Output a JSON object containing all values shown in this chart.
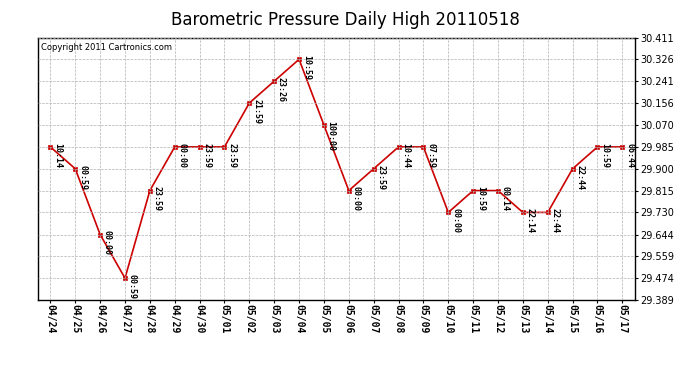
{
  "title": "Barometric Pressure Daily High 20110518",
  "copyright": "Copyright 2011 Cartronics.com",
  "x_labels": [
    "04/24",
    "04/25",
    "04/26",
    "04/27",
    "04/28",
    "04/29",
    "04/30",
    "05/01",
    "05/02",
    "05/03",
    "05/04",
    "05/05",
    "05/06",
    "05/07",
    "05/08",
    "05/09",
    "05/10",
    "05/11",
    "05/12",
    "05/13",
    "05/14",
    "05/15",
    "05/16",
    "05/17"
  ],
  "y_values": [
    29.985,
    29.9,
    29.644,
    29.474,
    29.815,
    29.985,
    29.985,
    29.985,
    30.156,
    30.241,
    30.326,
    30.07,
    29.815,
    29.9,
    29.985,
    29.985,
    29.73,
    29.815,
    29.815,
    29.73,
    29.73,
    29.9,
    29.985,
    29.985
  ],
  "point_labels": [
    "10:14",
    "00:59",
    "00:00",
    "00:59",
    "23:59",
    "00:00",
    "23:59",
    "23:59",
    "21:59",
    "23:26",
    "10:59",
    "100:00",
    "00:00",
    "23:59",
    "10:44",
    "07:59",
    "00:00",
    "10:59",
    "00:14",
    "22:14",
    "22:44",
    "22:44",
    "10:59",
    "06:44"
  ],
  "y_min": 29.389,
  "y_max": 30.411,
  "y_ticks": [
    29.389,
    29.474,
    29.559,
    29.644,
    29.73,
    29.815,
    29.9,
    29.985,
    30.07,
    30.156,
    30.241,
    30.326,
    30.411
  ],
  "line_color": "#cc0000",
  "marker_color": "#cc0000",
  "bg_color": "#ffffff",
  "grid_color": "#b0b0b0",
  "title_fontsize": 12,
  "tick_fontsize": 7,
  "anno_fontsize": 6
}
